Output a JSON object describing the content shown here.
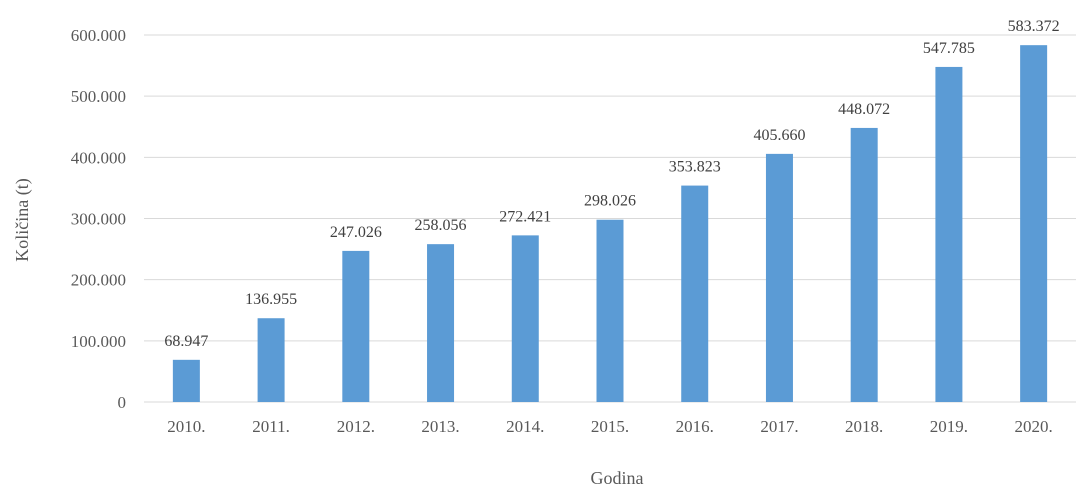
{
  "chart_data": {
    "type": "bar",
    "title": "",
    "xlabel": "Godina",
    "ylabel": "Količina (t)",
    "categories": [
      "2010.",
      "2011.",
      "2012.",
      "2013.",
      "2014.",
      "2015.",
      "2016.",
      "2017.",
      "2018.",
      "2019.",
      "2020."
    ],
    "values": [
      68947,
      136955,
      247026,
      258056,
      272421,
      298026,
      353823,
      405660,
      448072,
      547785,
      583372
    ],
    "value_labels": [
      "68.947",
      "136.955",
      "247.026",
      "258.056",
      "272.421",
      "298.026",
      "353.823",
      "405.660",
      "448.072",
      "547.785",
      "583.372"
    ],
    "ylim": [
      0,
      600000
    ],
    "yticks": [
      0,
      100000,
      200000,
      300000,
      400000,
      500000,
      600000
    ],
    "ytick_labels": [
      "0",
      "100.000",
      "200.000",
      "300.000",
      "400.000",
      "500.000",
      "600.000"
    ],
    "grid": true,
    "legend": "none",
    "colors": {
      "bar": "#5b9bd5",
      "grid": "#d9d9d9",
      "text": "#595959"
    }
  }
}
